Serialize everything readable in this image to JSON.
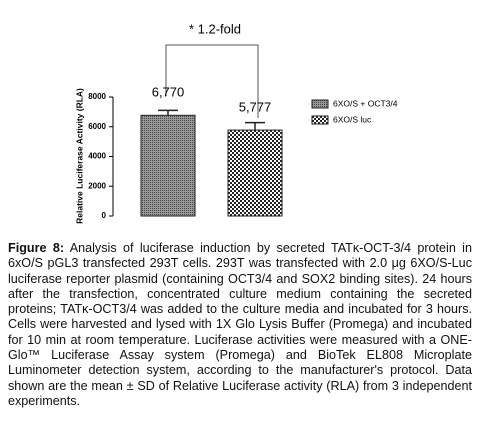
{
  "chart_data": {
    "type": "bar",
    "annotation": "* 1.2-fold",
    "y_label": "Relative Luciferase Activity (RLA)",
    "categories": [
      null,
      null
    ],
    "series": [
      {
        "name": "6XO/S + OCT3/4",
        "color": "#444444",
        "values": [
          6770,
          null
        ],
        "errors": [
          330,
          null
        ],
        "value_labels": [
          "6,770",
          null
        ]
      },
      {
        "name": "6XO/S luc",
        "color": "#222222",
        "values": [
          null,
          5777
        ],
        "errors": [
          null,
          500
        ],
        "value_labels": [
          null,
          "5,777"
        ]
      }
    ],
    "ylim": [
      0,
      8000
    ],
    "yticks": [
      0,
      2000,
      4000,
      6000,
      8000
    ],
    "grid": false
  },
  "caption": {
    "label": "Figure 8:",
    "text": "Analysis of luciferase induction by secreted TATκ-OCT-3/4 protein in 6xO/S pGL3 transfected 293T cells. 293T was transfected with 2.0 μg 6XO/S-Luc luciferase reporter plasmid (containing OCT3/4 and SOX2 binding sites). 24 hours after the transfection, concentrated culture medium containing the secreted proteins; TATκ-OCT3/4 was added to the culture media and incubated for 3 hours. Cells were harvested and lysed with 1X Glo Lysis Buffer (Promega) and incubated for 10 min at room temperature. Luciferase activities were measured with a ONE-Glo™ Luciferase Assay system (Promega) and BioTek EL808 Microplate Luminometer detection system, according to the manufacturer's protocol. Data shown are the mean ± SD of Relative Luciferase activity (RLA) from 3 independent experiments."
  }
}
